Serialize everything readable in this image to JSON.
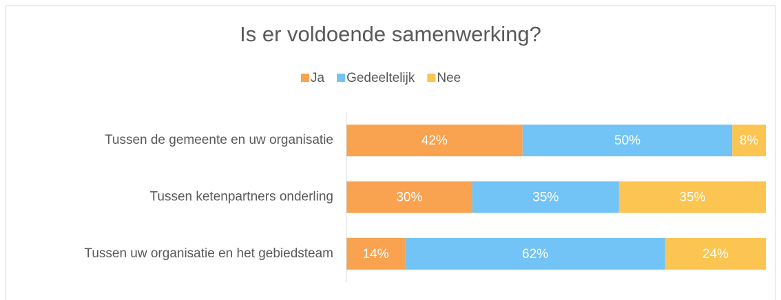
{
  "chart_data": {
    "type": "stacked_bar_horizontal",
    "title": "Is er voldoende samenwerking?",
    "categories": [
      "Tussen de gemeente en uw organisatie",
      "Tussen ketenpartners onderling",
      "Tussen uw organisatie en het gebiedsteam"
    ],
    "series": [
      {
        "name": "Ja",
        "color": "#f9a24f",
        "values": [
          42,
          30,
          14
        ],
        "value_labels": [
          "42%",
          "30%",
          "14%"
        ]
      },
      {
        "name": "Gedeeltelijk",
        "color": "#72c3f6",
        "values": [
          50,
          35,
          62
        ],
        "value_labels": [
          "50%",
          "35%",
          "62%"
        ]
      },
      {
        "name": "Nee",
        "color": "#fcc450",
        "values": [
          8,
          35,
          24
        ],
        "value_labels": [
          "8%",
          "35%",
          "24%"
        ]
      }
    ],
    "xlim": [
      0,
      100
    ],
    "legend": "top"
  }
}
